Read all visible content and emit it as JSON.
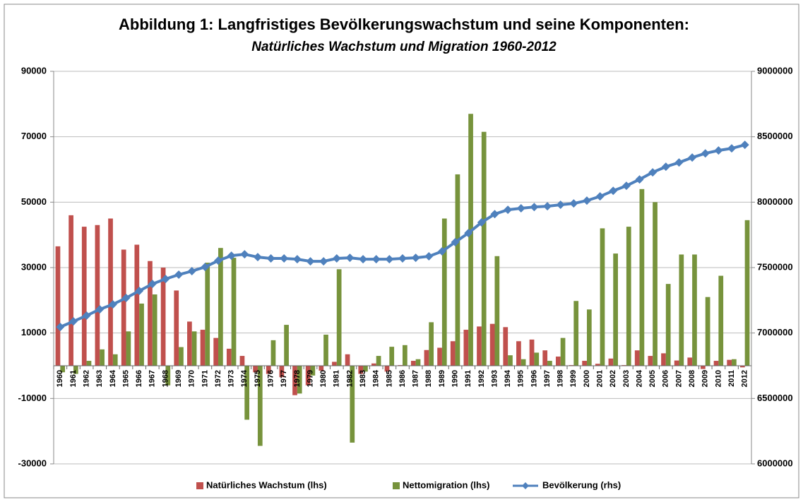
{
  "chart_data": {
    "type": "bar",
    "title": "Abbildung 1: Langfristiges Bevölkerungswachstum und seine Komponenten:",
    "subtitle": "Natürliches Wachstum und Migration 1960-2012",
    "categories": [
      "1960",
      "1961",
      "1962",
      "1963",
      "1964",
      "1965",
      "1966",
      "1967",
      "1968",
      "1969",
      "1970",
      "1971",
      "1972",
      "1973",
      "1974",
      "1975",
      "1976",
      "1977",
      "1978",
      "1979",
      "1980",
      "1981",
      "1982",
      "1983",
      "1984",
      "1985",
      "1986",
      "1987",
      "1988",
      "1989",
      "1990",
      "1991",
      "1992",
      "1993",
      "1994",
      "1995",
      "1996",
      "1997",
      "1998",
      "1999",
      "2000",
      "2001",
      "2002",
      "2003",
      "2004",
      "2005",
      "2006",
      "2007",
      "2008",
      "2009",
      "2010",
      "2011",
      "2012"
    ],
    "series": [
      {
        "name": "Natürliches Wachstum (lhs)",
        "color": "#c0504d",
        "type": "bar",
        "values": [
          36500,
          46000,
          42500,
          43000,
          45000,
          35500,
          37000,
          32000,
          30000,
          23000,
          13500,
          11000,
          8500,
          5200,
          3000,
          -2000,
          -2500,
          -3500,
          -9000,
          -6000,
          -1500,
          1200,
          3500,
          -2500,
          700,
          -1800,
          200,
          1500,
          4800,
          5500,
          7500,
          11000,
          12000,
          12800,
          11800,
          7500,
          8000,
          4700,
          2800,
          200,
          1500,
          600,
          2200,
          200,
          4700,
          3000,
          3800,
          1600,
          2500,
          -1000,
          1500,
          1800,
          -500
        ]
      },
      {
        "name": "Nettomigration (lhs)",
        "color": "#77933c",
        "type": "bar",
        "values": [
          -2000,
          -2500,
          1500,
          5000,
          3500,
          10500,
          19000,
          21800,
          -6000,
          5700,
          10500,
          31500,
          36000,
          33000,
          -16500,
          -24500,
          7800,
          12500,
          -8500,
          -3000,
          9500,
          29500,
          -23500,
          -1800,
          3000,
          5800,
          6300,
          2000,
          13300,
          45000,
          58500,
          77000,
          71500,
          33500,
          3200,
          2000,
          4000,
          1500,
          8500,
          19800,
          17200,
          42000,
          34300,
          42500,
          54000,
          50000,
          25000,
          34000,
          34000,
          21000,
          27500,
          2000,
          44500
        ]
      },
      {
        "name": "Bevölkerung (rhs)",
        "color": "#4f81bd",
        "type": "line",
        "axis": "y2",
        "values": [
          7046000,
          7089000,
          7133000,
          7181000,
          7219000,
          7268000,
          7322000,
          7375000,
          7413000,
          7446000,
          7473000,
          7505000,
          7553000,
          7591000,
          7602000,
          7580000,
          7570000,
          7570000,
          7564000,
          7548000,
          7548000,
          7570000,
          7575000,
          7564000,
          7564000,
          7564000,
          7570000,
          7575000,
          7586000,
          7624000,
          7694000,
          7764000,
          7845000,
          7909000,
          7942000,
          7953000,
          7963000,
          7969000,
          7980000,
          7990000,
          8012000,
          8044000,
          8087000,
          8125000,
          8174000,
          8228000,
          8271000,
          8303000,
          8341000,
          8373000,
          8395000,
          8411000,
          8438000
        ]
      }
    ],
    "ylim": [
      -30000,
      90000
    ],
    "yticks": [
      -30000,
      -10000,
      10000,
      30000,
      50000,
      70000,
      90000
    ],
    "y2lim": [
      6000000,
      9000000
    ],
    "y2ticks": [
      6000000,
      6500000,
      7000000,
      7500000,
      8000000,
      8500000,
      9000000
    ],
    "grid": true,
    "legend": "bottom"
  }
}
